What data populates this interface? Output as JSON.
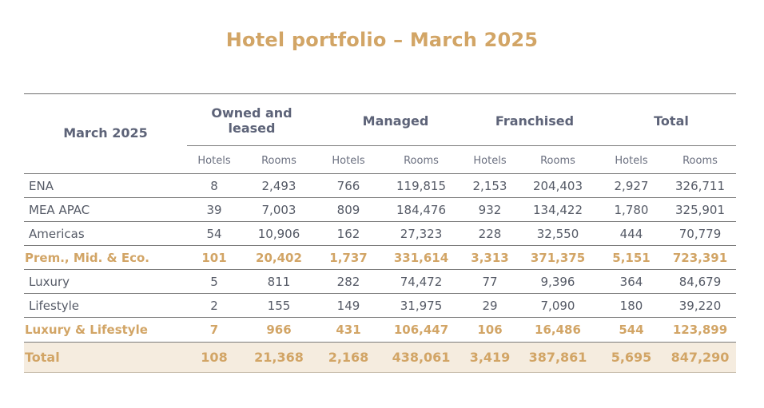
{
  "title": "Hotel portfolio – March 2025",
  "table": {
    "corner_label": "March 2025",
    "groups": [
      {
        "label": "Owned and leased"
      },
      {
        "label": "Managed"
      },
      {
        "label": "Franchised"
      },
      {
        "label": "Total"
      }
    ],
    "subheaders": [
      "Hotels",
      "Rooms",
      "Hotels",
      "Rooms",
      "Hotels",
      "Rooms",
      "Hotels",
      "Rooms"
    ],
    "rows": [
      {
        "label": "ENA",
        "values": [
          "8",
          "2,493",
          "766",
          "119,815",
          "2,153",
          "204,403",
          "2,927",
          "326,711"
        ]
      },
      {
        "label": "MEA APAC",
        "values": [
          "39",
          "7,003",
          "809",
          "184,476",
          "932",
          "134,422",
          "1,780",
          "325,901"
        ]
      },
      {
        "label": "Americas",
        "values": [
          "54",
          "10,906",
          "162",
          "27,323",
          "228",
          "32,550",
          "444",
          "70,779"
        ]
      },
      {
        "label": "Prem., Mid. & Eco.",
        "values": [
          "101",
          "20,402",
          "1,737",
          "331,614",
          "3,313",
          "371,375",
          "5,151",
          "723,391"
        ]
      },
      {
        "label": "Luxury",
        "values": [
          "5",
          "811",
          "282",
          "74,472",
          "77",
          "9,396",
          "364",
          "84,679"
        ]
      },
      {
        "label": "Lifestyle",
        "values": [
          "2",
          "155",
          "149",
          "31,975",
          "29",
          "7,090",
          "180",
          "39,220"
        ]
      },
      {
        "label": "Luxury & Lifestyle",
        "values": [
          "7",
          "966",
          "431",
          "106,447",
          "106",
          "16,486",
          "544",
          "123,899"
        ]
      },
      {
        "label": "Total",
        "values": [
          "108",
          "21,368",
          "2,168",
          "438,061",
          "3,419",
          "387,861",
          "5,695",
          "847,290"
        ]
      }
    ]
  },
  "colors": {
    "accent_gold": "#d2a566",
    "header_slate": "#5d6378",
    "body_text": "#555a66",
    "total_band": "#f5ecdf"
  }
}
